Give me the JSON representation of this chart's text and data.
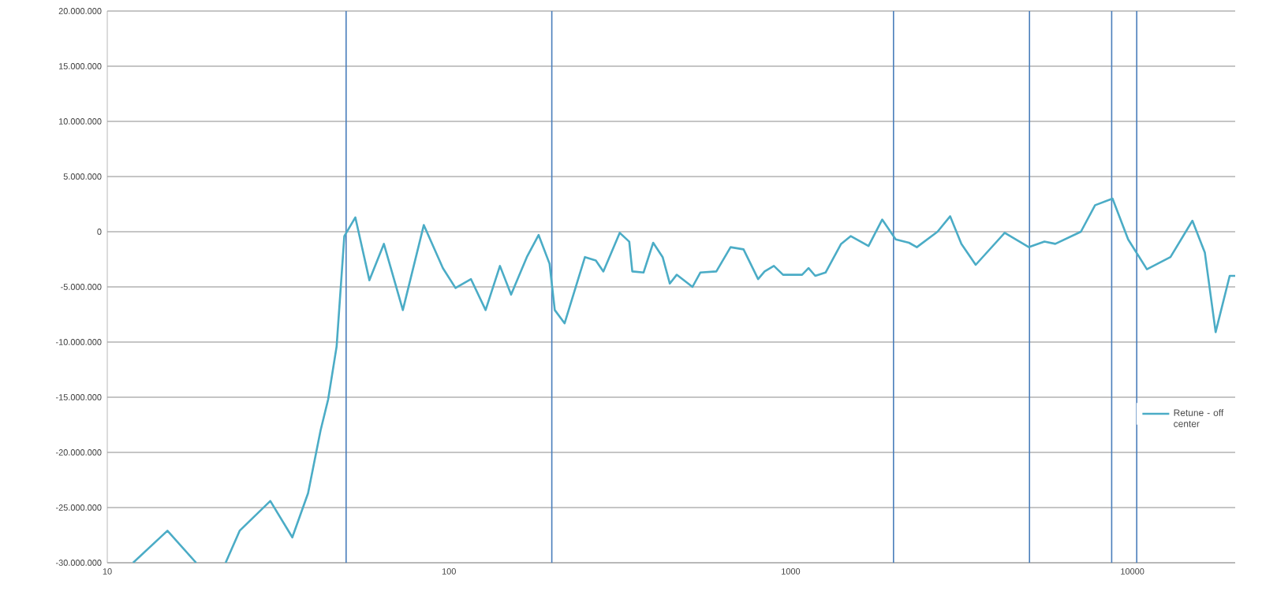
{
  "chart_data": {
    "type": "line",
    "log": "x",
    "grid": "y",
    "legend": "right",
    "line_style": "solid",
    "marker": "none",
    "xlim": [
      10,
      20000
    ],
    "ylim": [
      -30000000,
      20000000
    ],
    "xticks": [
      10,
      100,
      1000,
      10000
    ],
    "yticks": [
      {
        "value": -30000000,
        "label": "-30.000.000"
      },
      {
        "value": -25000000,
        "label": "-25.000.000"
      },
      {
        "value": -20000000,
        "label": "-20.000.000"
      },
      {
        "value": -15000000,
        "label": "-15.000.000"
      },
      {
        "value": -10000000,
        "label": "-10.000.000"
      },
      {
        "value": -5000000,
        "label": "-5.000.000"
      },
      {
        "value": 0,
        "label": "0"
      },
      {
        "value": 5000000,
        "label": "5.000.000"
      },
      {
        "value": 10000000,
        "label": "10.000.000"
      },
      {
        "value": 15000000,
        "label": "15.000.000"
      },
      {
        "value": 20000000,
        "label": "20.000.000"
      }
    ],
    "ref_lines": [
      {
        "axis": "x",
        "value": 50,
        "color": "#4a7ebb"
      },
      {
        "axis": "x",
        "value": 200,
        "color": "#4a7ebb"
      },
      {
        "axis": "x",
        "value": 2000,
        "color": "#4a7ebb"
      },
      {
        "axis": "x",
        "value": 5000,
        "color": "#4a7ebb"
      },
      {
        "axis": "x",
        "value": 8700,
        "color": "#4a7ebb"
      },
      {
        "axis": "x",
        "value": 10300,
        "color": "#4a7ebb"
      }
    ],
    "series": [
      {
        "name": "Retune - off center",
        "color": "#4bacc6",
        "x": [
          11.9,
          15,
          18.2,
          null,
          22.2,
          24.4,
          30,
          34.8,
          38.7,
          42.1,
          44.3,
          46.9,
          49.4,
          53.2,
          58.5,
          64.5,
          73.3,
          84.4,
          96,
          104.5,
          116,
          128,
          141,
          152,
          169,
          183,
          197,
          204,
          218,
          250,
          269,
          283,
          316,
          337,
          344,
          371,
          396,
          422,
          443,
          464,
          516,
          544,
          606,
          667,
          728,
          803,
          839,
          893,
          950,
          1080,
          1128,
          1180,
          1265,
          1405,
          1500,
          1690,
          1853,
          2030,
          2220,
          2340,
          2690,
          2930,
          3160,
          3480,
          4230,
          4980,
          5530,
          5950,
          7070,
          7780,
          8750,
          9720,
          11030,
          12930,
          14990,
          16300,
          17530,
          19270,
          20000
        ],
        "values": [
          -30000000,
          -27100000,
          -30000000,
          null,
          -30000000,
          -27100000,
          -24400000,
          -27700000,
          -23700000,
          -18000000,
          -15200000,
          -10400000,
          -400000,
          1300000,
          -4400000,
          -1100000,
          -7100000,
          600000,
          -3300000,
          -5100000,
          -4300000,
          -7100000,
          -3100000,
          -5700000,
          -2300000,
          -300000,
          -2900000,
          -7100000,
          -8300000,
          -2300000,
          -2600000,
          -3600000,
          -100000,
          -900000,
          -3600000,
          -3700000,
          -1000000,
          -2300000,
          -4700000,
          -3900000,
          -5000000,
          -3700000,
          -3600000,
          -1400000,
          -1600000,
          -4300000,
          -3600000,
          -3100000,
          -3900000,
          -3900000,
          -3300000,
          -4000000,
          -3700000,
          -1100000,
          -400000,
          -1300000,
          1100000,
          -700000,
          -1000000,
          -1400000,
          0,
          1400000,
          -1100000,
          -3000000,
          -100000,
          -1400000,
          -900000,
          -1100000,
          0,
          2400000,
          3000000,
          -700000,
          -3400000,
          -2300000,
          1000000,
          -1900000,
          -9100000,
          -4000000,
          -4000000
        ]
      }
    ]
  }
}
